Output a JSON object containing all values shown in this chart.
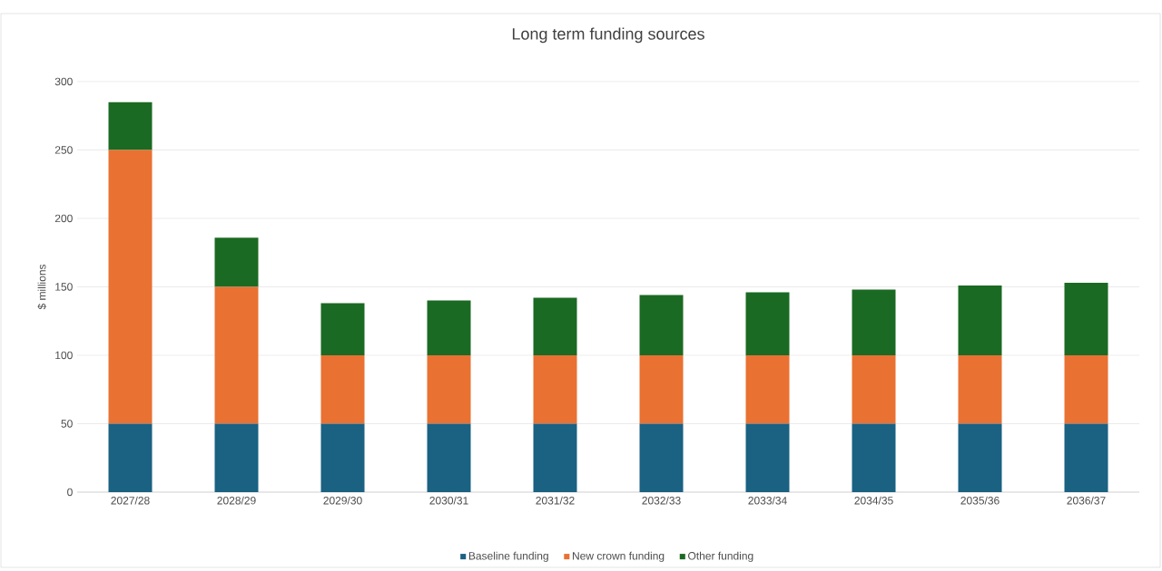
{
  "chart_data": {
    "type": "bar",
    "stacked": true,
    "title": "Long term funding sources",
    "ylabel": "$ millions",
    "categories": [
      "2027/28",
      "2028/29",
      "2029/30",
      "2030/31",
      "2031/32",
      "2032/33",
      "2033/34",
      "2034/35",
      "2035/36",
      "2036/37"
    ],
    "series": [
      {
        "name": "Baseline funding",
        "color": "#1a6182",
        "values": [
          50,
          50,
          50,
          50,
          50,
          50,
          50,
          50,
          50,
          50
        ]
      },
      {
        "name": "New crown funding",
        "color": "#e97132",
        "values": [
          200,
          100,
          50,
          50,
          50,
          50,
          50,
          50,
          50,
          50
        ]
      },
      {
        "name": "Other funding",
        "color": "#1b6a23",
        "values": [
          35,
          36,
          38,
          40,
          42,
          44,
          46,
          48,
          51,
          53
        ]
      }
    ],
    "ylim": [
      0,
      300
    ],
    "yticks": [
      0,
      50,
      100,
      150,
      200,
      250,
      300
    ],
    "grid": "y",
    "legend": "bottom"
  }
}
